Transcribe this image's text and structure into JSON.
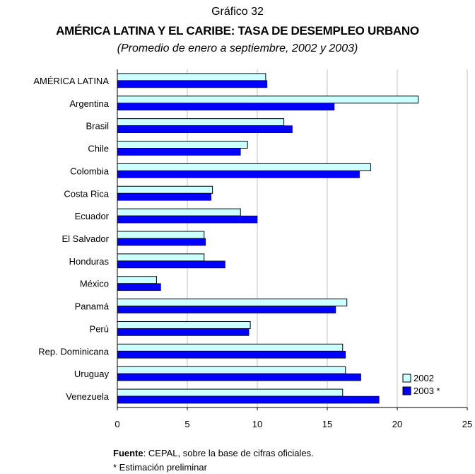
{
  "figure": {
    "label": "Gráfico 32",
    "title": "AMÉRICA LATINA Y EL CARIBE: TASA DE DESEMPLEO URBANO",
    "subtitle": "(Promedio de enero a septiembre, 2002 y 2003)"
  },
  "source": {
    "label": "Fuente",
    "text": ": CEPAL, sobre la base de cifras oficiales.",
    "note": "* Estimación preliminar"
  },
  "colors": {
    "series_2002": "#ccffff",
    "series_2003": "#0000ff",
    "grid": "#c0c0c0"
  },
  "chart_data": {
    "type": "bar",
    "orientation": "horizontal",
    "categories": [
      "AMÉRICA LATINA",
      "Argentina",
      "Brasil",
      "Chile",
      "Colombia",
      "Costa Rica",
      "Ecuador",
      "El Salvador",
      "Honduras",
      "México",
      "Panamá",
      "Perú",
      "Rep. Dominicana",
      "Uruguay",
      "Venezuela"
    ],
    "series": [
      {
        "name": "2002",
        "values": [
          10.6,
          21.5,
          11.9,
          9.3,
          18.1,
          6.8,
          8.8,
          6.2,
          6.2,
          2.8,
          16.4,
          9.5,
          16.1,
          16.3,
          16.1
        ]
      },
      {
        "name": "2003 *",
        "values": [
          10.7,
          15.5,
          12.5,
          8.8,
          17.3,
          6.7,
          10.0,
          6.3,
          7.7,
          3.1,
          15.6,
          9.4,
          16.3,
          17.4,
          18.7
        ]
      }
    ],
    "xlim": [
      0,
      25
    ],
    "xticks": [
      0,
      5,
      10,
      15,
      20,
      25
    ],
    "grid": true,
    "legend_position": "bottom-right"
  }
}
